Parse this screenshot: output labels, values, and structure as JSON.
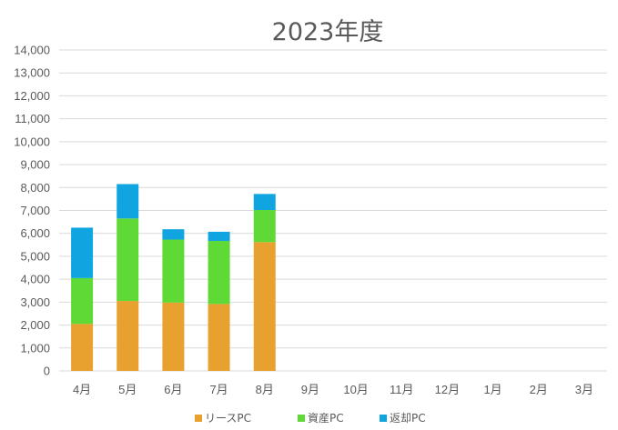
{
  "chart_data": {
    "type": "bar",
    "stacked": true,
    "title": "2023年度",
    "xlabel": "",
    "ylabel": "",
    "categories": [
      "4月",
      "5月",
      "6月",
      "7月",
      "8月",
      "9月",
      "10月",
      "11月",
      "12月",
      "1月",
      "2月",
      "3月"
    ],
    "ylim": [
      0,
      14000
    ],
    "yticks": [
      0,
      1000,
      2000,
      3000,
      4000,
      5000,
      6000,
      7000,
      8000,
      9000,
      10000,
      11000,
      12000,
      13000,
      14000
    ],
    "ytick_labels": [
      "0",
      "1,000",
      "2,000",
      "3,000",
      "4,000",
      "5,000",
      "6,000",
      "7,000",
      "8,000",
      "9,000",
      "10,000",
      "11,000",
      "12,000",
      "13,000",
      "14,000"
    ],
    "grid": true,
    "legend_position": "bottom",
    "series": [
      {
        "name": "リースPC",
        "color": "#e8a02e",
        "values": [
          2050,
          3050,
          2980,
          2920,
          5620,
          null,
          null,
          null,
          null,
          null,
          null,
          null
        ]
      },
      {
        "name": "資産PC",
        "color": "#5fd935",
        "values": [
          2000,
          3600,
          2750,
          2750,
          1400,
          null,
          null,
          null,
          null,
          null,
          null,
          null
        ]
      },
      {
        "name": "返却PC",
        "color": "#10a5e0",
        "values": [
          2200,
          1500,
          450,
          400,
          700,
          null,
          null,
          null,
          null,
          null,
          null,
          null
        ]
      }
    ]
  }
}
